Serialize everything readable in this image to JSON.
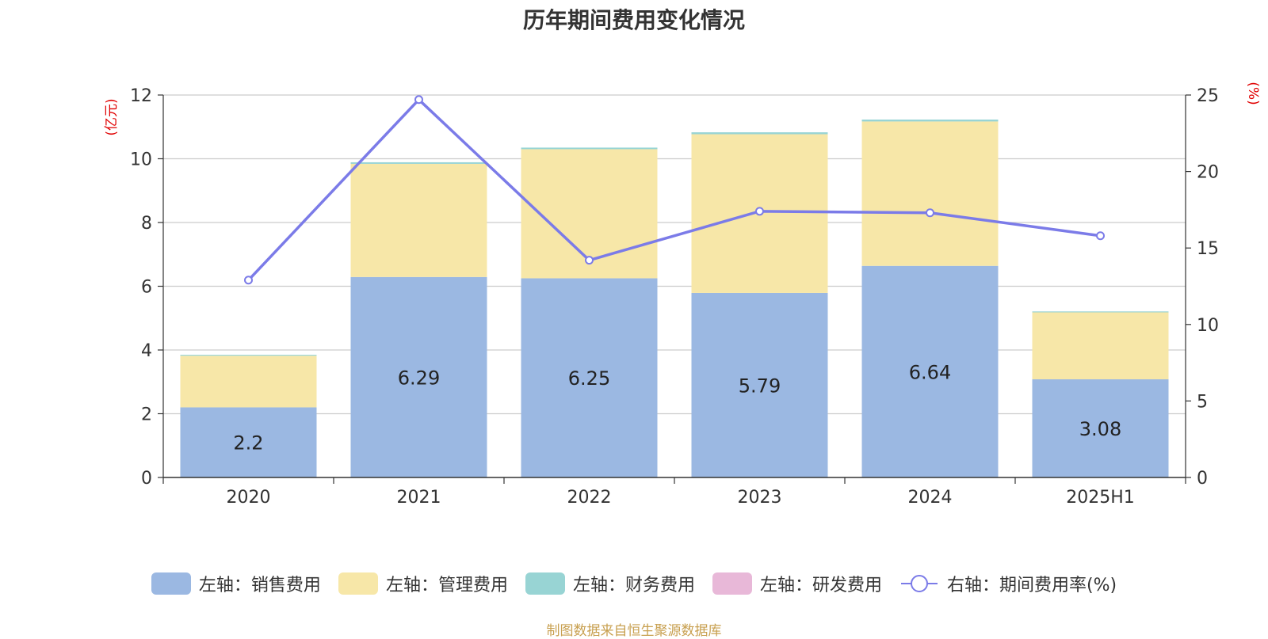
{
  "chart_data": {
    "type": "bar",
    "title": "历年期间费用变化情况",
    "categories": [
      "2020",
      "2021",
      "2022",
      "2023",
      "2024",
      "2025H1"
    ],
    "y_left": {
      "unit_label": "(亿元)",
      "ylim": [
        0,
        12
      ],
      "ticks": [
        "0",
        "2",
        "4",
        "6",
        "8",
        "10",
        "12"
      ]
    },
    "y_right": {
      "unit_label": "(%)",
      "ylim": [
        0,
        25
      ],
      "ticks": [
        "0",
        "5",
        "10",
        "15",
        "20",
        "25"
      ]
    },
    "series": [
      {
        "name": "左轴：销售费用",
        "type": "bar",
        "axis": "left",
        "color": "#9bb8e2",
        "values": [
          2.2,
          6.29,
          6.25,
          5.79,
          6.64,
          3.08
        ],
        "labels": [
          "2.2",
          "6.29",
          "6.25",
          "5.79",
          "6.64",
          "3.08"
        ]
      },
      {
        "name": "左轴：管理费用",
        "type": "bar",
        "axis": "left",
        "color": "#f7e7a8",
        "values": [
          1.62,
          3.55,
          4.05,
          4.98,
          4.53,
          2.1
        ]
      },
      {
        "name": "左轴：财务费用",
        "type": "bar",
        "axis": "left",
        "color": "#98d4d4",
        "values": [
          0.03,
          0.05,
          0.05,
          0.06,
          0.06,
          0.03
        ]
      },
      {
        "name": "左轴：研发费用",
        "type": "bar",
        "axis": "left",
        "color": "#e8b8d8",
        "values": [
          0,
          0,
          0,
          0,
          0,
          0
        ]
      },
      {
        "name": "右轴：期间费用率(%)",
        "type": "line",
        "axis": "right",
        "color": "#7b7be8",
        "values": [
          12.9,
          24.7,
          14.2,
          17.4,
          17.3,
          15.8
        ]
      }
    ],
    "stacked": true,
    "grid": true,
    "legend_position": "bottom"
  },
  "source_note": "制图数据来自恒生聚源数据库"
}
